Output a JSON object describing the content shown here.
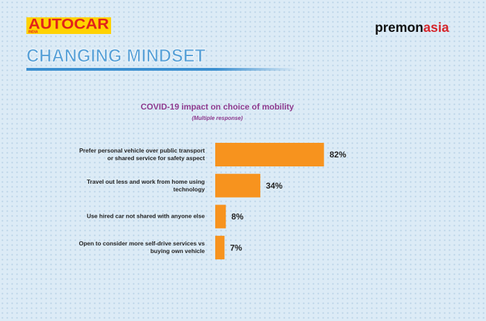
{
  "header": {
    "brand": "AUTOCAR",
    "brand_sub": "INDIA",
    "partner": [
      "premon",
      "asia"
    ],
    "headline": "CHANGING MINDSET"
  },
  "chart_data": {
    "type": "bar",
    "orientation": "horizontal",
    "title": "COVID-19 impact on choice of mobility",
    "subtitle": "(Multiple response)",
    "categories": [
      "Prefer personal vehicle over public transport or shared service for safety aspect",
      "Travel out less and work from home using technology",
      "Use hired car not shared with anyone else",
      "Open to consider more self-drive services vs buying own vehicle"
    ],
    "values": [
      82,
      34,
      8,
      7
    ],
    "value_labels": [
      "82%",
      "34%",
      "8%",
      "7%"
    ],
    "color": "#f7931e"
  }
}
